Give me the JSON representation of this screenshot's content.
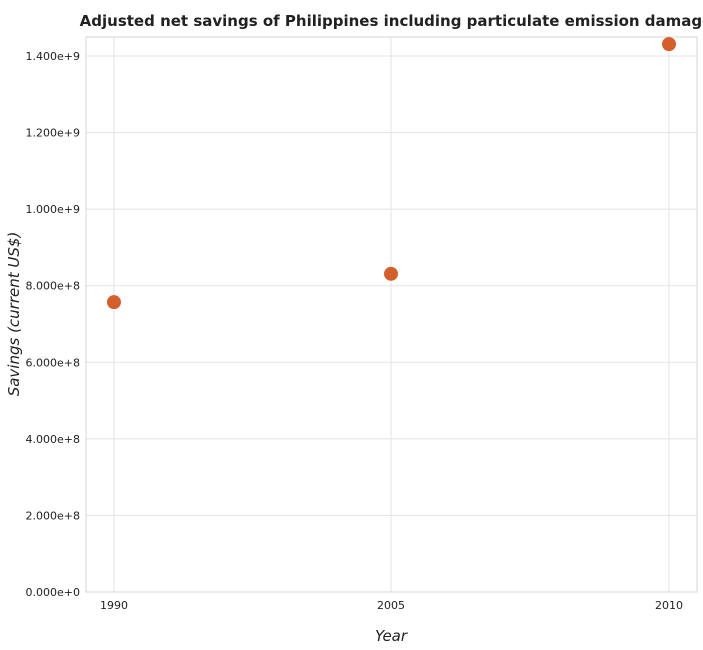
{
  "chart_data": {
    "type": "scatter",
    "title": "Adjusted net savings of Philippines including particulate emission damage",
    "xlabel": "Year",
    "ylabel": "Savings (current US$)",
    "categories": [
      "1990",
      "2005",
      "2010"
    ],
    "series": [
      {
        "values": [
          757000000,
          831000000,
          1431000000
        ]
      }
    ],
    "ylim": [
      0,
      1400000000
    ],
    "yticks": [
      0,
      200000000,
      400000000,
      600000000,
      800000000,
      1000000000,
      1200000000,
      1400000000
    ],
    "ytick_labels": [
      "0.000e+0",
      "2.000e+8",
      "4.000e+8",
      "6.000e+8",
      "8.000e+8",
      "1.000e+9",
      "1.200e+9",
      "1.400e+9"
    ],
    "grid": true,
    "marker_color": "#d35f2c"
  }
}
